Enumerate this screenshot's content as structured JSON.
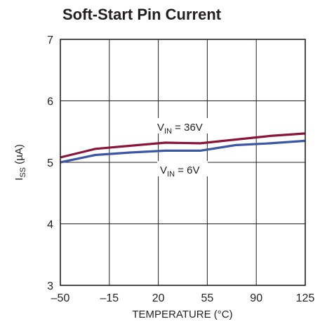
{
  "chart_data": {
    "type": "line",
    "title": "Soft-Start Pin Current",
    "xlabel": "TEMPERATURE (°C)",
    "ylabel": {
      "main": "I",
      "sub": "SS",
      "unit": " (µA)"
    },
    "xlim": [
      -50,
      125
    ],
    "ylim": [
      3,
      7
    ],
    "x_ticks": [
      "–50",
      "–15",
      "20",
      "55",
      "90",
      "125"
    ],
    "y_ticks": [
      "3",
      "4",
      "5",
      "6",
      "7"
    ],
    "grid": true,
    "series": [
      {
        "color": "#8b1538",
        "x": [
          -50,
          -25,
          0,
          25,
          50,
          75,
          100,
          125
        ],
        "y": [
          5.08,
          5.22,
          5.27,
          5.32,
          5.31,
          5.37,
          5.43,
          5.47
        ]
      },
      {
        "color": "#3a56a4",
        "x": [
          -50,
          -25,
          0,
          25,
          50,
          75,
          100,
          125
        ],
        "y": [
          5.0,
          5.12,
          5.16,
          5.19,
          5.19,
          5.28,
          5.31,
          5.35
        ]
      }
    ],
    "annotations": [
      {
        "main": "V",
        "sub": "IN",
        "rest": " = 36V"
      },
      {
        "main": "V",
        "sub": "IN",
        "rest": " = 6V"
      }
    ]
  }
}
